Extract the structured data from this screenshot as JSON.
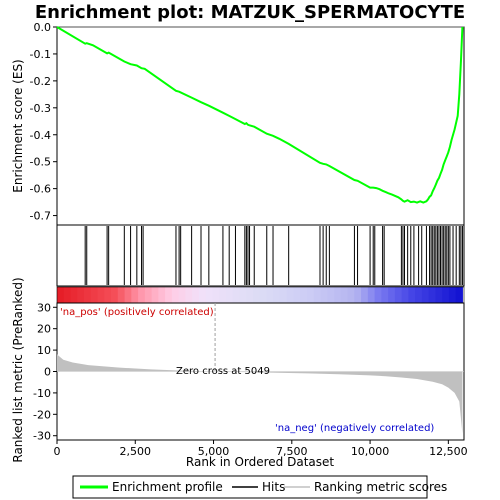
{
  "chart_data": {
    "type": "line",
    "title": "Enrichment plot: MATZUK_SPERMATOCYTE",
    "xlabel": "Rank in Ordered Dataset",
    "ylabel_top": "Enrichment score (ES)",
    "ylabel_bottom": "Ranked list metric (PreRanked)",
    "x_ticks": [
      "0",
      "2,500",
      "5,000",
      "7,500",
      "10,000",
      "12,500"
    ],
    "x_tick_values": [
      0,
      2500,
      5000,
      7500,
      10000,
      12500
    ],
    "xlim": [
      0,
      13000
    ],
    "es_ticks": [
      "0.0",
      "-0.1",
      "-0.2",
      "-0.3",
      "-0.4",
      "-0.5",
      "-0.6",
      "-0.7"
    ],
    "es_tick_values": [
      0.0,
      -0.1,
      -0.2,
      -0.3,
      -0.4,
      -0.5,
      -0.6,
      -0.7
    ],
    "es_ylim": [
      -0.735,
      0.0
    ],
    "metric_ticks": [
      "30",
      "20",
      "10",
      "0",
      "-10",
      "-20",
      "-30"
    ],
    "metric_tick_values": [
      30,
      20,
      10,
      0,
      -10,
      -20,
      -30
    ],
    "metric_ylim": [
      -32,
      32
    ],
    "zero_cross_label": "Zero cross at 5049",
    "zero_cross": 5049,
    "pos_label": "'na_pos' (positively correlated)",
    "neg_label": "'na_neg' (negatively correlated)",
    "legend": [
      "Enrichment profile",
      "Hits",
      "Ranking metric scores"
    ],
    "colors": {
      "es_line": "#00ff00",
      "hits": "#000000",
      "metric_fill": "#c0c0c0",
      "pos": "#ff0000",
      "neg": "#0000ff",
      "zero_line": "#a0a0a0"
    },
    "enrichment_profile": {
      "x": [
        0,
        900,
        950,
        1150,
        1600,
        1650,
        2150,
        2350,
        2550,
        2700,
        2800,
        3800,
        3900,
        4300,
        4600,
        4850,
        5300,
        5500,
        5700,
        6000,
        6050,
        6100,
        6150,
        6300,
        6700,
        6900,
        7100,
        7400,
        8400,
        8500,
        8600,
        8700,
        9500,
        9600,
        10000,
        10100,
        10200,
        10300,
        10400,
        10500,
        10600,
        10700,
        10900,
        11000,
        11050,
        11100,
        11200,
        11300,
        11400,
        11500,
        11600,
        11700,
        11800,
        11850,
        11900,
        11950,
        12000,
        12050,
        12100,
        12150,
        12200,
        12250,
        12300,
        12350,
        12400,
        12450,
        12500,
        12550,
        12600,
        12700,
        12800,
        12850,
        12900,
        12950
      ],
      "y": [
        0.0,
        -0.062,
        -0.06,
        -0.068,
        -0.098,
        -0.095,
        -0.128,
        -0.138,
        -0.143,
        -0.153,
        -0.155,
        -0.237,
        -0.24,
        -0.262,
        -0.279,
        -0.292,
        -0.318,
        -0.33,
        -0.342,
        -0.36,
        -0.357,
        -0.363,
        -0.365,
        -0.37,
        -0.396,
        -0.404,
        -0.415,
        -0.434,
        -0.504,
        -0.508,
        -0.51,
        -0.516,
        -0.568,
        -0.571,
        -0.596,
        -0.596,
        -0.598,
        -0.602,
        -0.608,
        -0.613,
        -0.618,
        -0.622,
        -0.632,
        -0.64,
        -0.645,
        -0.648,
        -0.643,
        -0.65,
        -0.648,
        -0.652,
        -0.647,
        -0.652,
        -0.647,
        -0.64,
        -0.63,
        -0.625,
        -0.61,
        -0.598,
        -0.585,
        -0.57,
        -0.56,
        -0.545,
        -0.53,
        -0.51,
        -0.495,
        -0.48,
        -0.465,
        -0.445,
        -0.42,
        -0.38,
        -0.33,
        -0.25,
        -0.13,
        0.0
      ]
    },
    "hits": [
      900,
      950,
      1600,
      1650,
      2150,
      2350,
      2550,
      2700,
      2750,
      3800,
      3900,
      3950,
      4300,
      4600,
      4850,
      5300,
      5500,
      5700,
      6000,
      6050,
      6100,
      6150,
      6300,
      6700,
      6900,
      7400,
      8400,
      8500,
      8600,
      8700,
      9500,
      9600,
      10000,
      10100,
      10150,
      10400,
      10450,
      11000,
      11050,
      11100,
      11200,
      11300,
      11400,
      11550,
      11650,
      11800,
      11900,
      11950,
      12000,
      12050,
      12100,
      12150,
      12200,
      12250,
      12300,
      12350,
      12400,
      12450,
      12500,
      12550,
      12650,
      12750,
      12850,
      12900,
      12950
    ],
    "metric_profile": {
      "x": [
        0,
        200,
        500,
        1000,
        1500,
        2000,
        3000,
        4000,
        5049,
        6000,
        7000,
        8000,
        9000,
        10000,
        10500,
        11000,
        11500,
        12000,
        12300,
        12500,
        12700,
        12850,
        12950
      ],
      "y": [
        8,
        5.5,
        4.2,
        3.0,
        2.4,
        1.8,
        1.0,
        0.4,
        0.0,
        -0.3,
        -0.6,
        -0.9,
        -1.3,
        -1.8,
        -2.2,
        -2.8,
        -3.5,
        -4.8,
        -6.0,
        -7.5,
        -10,
        -14,
        -29
      ]
    }
  }
}
